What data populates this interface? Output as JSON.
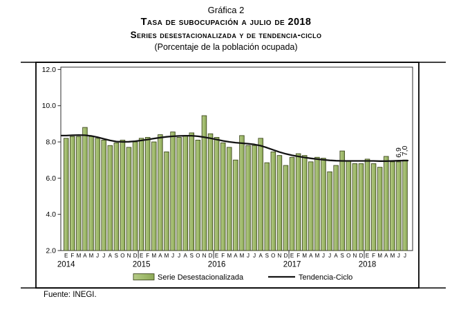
{
  "header": {
    "caption": "Gráfica 2",
    "title": "Tasa de subocupación a julio de 2018",
    "subtitle": "Series desestacionalizada y de tendencia-ciclo",
    "unit_note": "(Porcentaje de la población ocupada)"
  },
  "source": "Fuente: INEGI.",
  "colors": {
    "bar_fill": "#a3bd70",
    "bar_fill_light": "#b6cb88",
    "bar_fill_dark": "#8da958",
    "bar_border": "#3f4a1f",
    "trend": "#141414",
    "frame": "#000000",
    "axis": "#2b2b2b"
  },
  "chart_data": {
    "type": "bar",
    "title": "Tasa de subocupación a julio de 2018",
    "subtitle": "Series desestacionalizada y de tendencia-ciclo",
    "unit_label": "(Porcentaje de la población ocupada)",
    "grid": false,
    "legend_position": "bottom",
    "ylim": [
      2.0,
      12.0
    ],
    "ytick_values": [
      2,
      4,
      6,
      8,
      10,
      12
    ],
    "ytick_labels": [
      "2.0",
      "4.0",
      "6.0",
      "8.0",
      "10.0",
      "12.0"
    ],
    "month_letters": [
      "E",
      "F",
      "M",
      "A",
      "M",
      "J",
      "J",
      "A",
      "S",
      "O",
      "N",
      "D"
    ],
    "years": [
      {
        "label": "2014",
        "n_months": 12
      },
      {
        "label": "2015",
        "n_months": 12
      },
      {
        "label": "2016",
        "n_months": 12
      },
      {
        "label": "2017",
        "n_months": 12
      },
      {
        "label": "2018",
        "n_months": 7
      }
    ],
    "series": [
      {
        "name": "Serie Desestacionalizada",
        "type": "bar",
        "color": "#a3bd70",
        "values": [
          8.2,
          8.3,
          8.3,
          8.8,
          8.3,
          8.2,
          8.1,
          7.8,
          7.95,
          8.1,
          7.7,
          8.0,
          8.2,
          8.25,
          8.0,
          8.4,
          7.45,
          8.55,
          8.25,
          8.35,
          8.5,
          8.1,
          9.45,
          8.45,
          8.25,
          7.95,
          7.7,
          7.0,
          8.35,
          7.8,
          7.8,
          8.2,
          6.85,
          7.45,
          7.25,
          6.7,
          7.15,
          7.35,
          7.25,
          6.9,
          7.15,
          7.1,
          6.35,
          6.7,
          7.5,
          6.95,
          6.8,
          6.8,
          7.05,
          6.8,
          6.6,
          7.2,
          6.9,
          6.9,
          7.0
        ]
      },
      {
        "name": "Tendencia-Ciclo",
        "type": "line",
        "color": "#141414",
        "values": [
          8.35,
          8.37,
          8.38,
          8.37,
          8.33,
          8.26,
          8.17,
          8.08,
          8.02,
          8.0,
          8.01,
          8.04,
          8.08,
          8.13,
          8.19,
          8.24,
          8.28,
          8.31,
          8.33,
          8.34,
          8.34,
          8.31,
          8.26,
          8.2,
          8.13,
          8.06,
          8.0,
          7.96,
          7.93,
          7.9,
          7.86,
          7.79,
          7.68,
          7.56,
          7.44,
          7.34,
          7.26,
          7.2,
          7.14,
          7.09,
          7.05,
          7.01,
          6.98,
          6.96,
          6.95,
          6.95,
          6.95,
          6.95,
          6.95,
          6.95,
          6.94,
          6.94,
          6.95,
          6.96,
          6.97
        ]
      }
    ],
    "point_labels": [
      {
        "index": 53,
        "text": "6,9"
      },
      {
        "index": 54,
        "text": "7,0"
      }
    ]
  }
}
